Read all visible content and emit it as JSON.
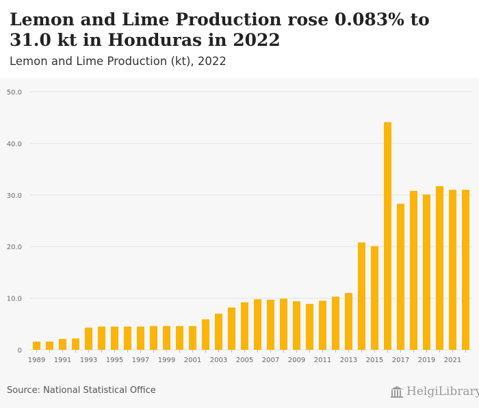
{
  "header": {
    "title": "Lemon and Lime Production rose 0.083% to 31.0 kt in Honduras in 2022",
    "subtitle": "Lemon and Lime Production (kt), 2022"
  },
  "footer": {
    "source": "Source: National Statistical Office",
    "brand": "HelgiLibrary"
  },
  "colors": {
    "bar": "#fbb40a",
    "grid": "#e3e3e3",
    "axis_text": "#666666"
  },
  "icons": {
    "brand_icon": "library-building-icon"
  },
  "chart_data": {
    "type": "bar",
    "title": "Lemon and Lime Production (kt), 2022",
    "xlabel": "",
    "ylabel": "",
    "ylim": [
      0,
      50
    ],
    "y_ticks": [
      "0",
      "10.0",
      "20.0",
      "30.0",
      "40.0",
      "50.0"
    ],
    "x_tick_labels": [
      "1989",
      "1991",
      "1993",
      "1995",
      "1997",
      "1999",
      "2001",
      "2003",
      "2005",
      "2007",
      "2009",
      "2011",
      "2013",
      "2015",
      "2017",
      "2019",
      "2021"
    ],
    "grid": true,
    "categories": [
      "1989",
      "1990",
      "1991",
      "1992",
      "1993",
      "1994",
      "1995",
      "1996",
      "1997",
      "1998",
      "1999",
      "2000",
      "2001",
      "2002",
      "2003",
      "2004",
      "2005",
      "2006",
      "2007",
      "2008",
      "2009",
      "2010",
      "2011",
      "2012",
      "2013",
      "2014",
      "2015",
      "2016",
      "2017",
      "2018",
      "2019",
      "2020",
      "2021",
      "2022"
    ],
    "values": [
      1.6,
      1.6,
      2.1,
      2.2,
      4.3,
      4.5,
      4.5,
      4.5,
      4.5,
      4.6,
      4.6,
      4.6,
      4.6,
      5.9,
      7.0,
      8.2,
      9.2,
      9.8,
      9.7,
      9.9,
      9.4,
      8.9,
      9.5,
      10.3,
      11.0,
      20.8,
      20.1,
      44.1,
      28.3,
      30.8,
      30.1,
      31.7,
      31.0,
      31.0
    ]
  }
}
